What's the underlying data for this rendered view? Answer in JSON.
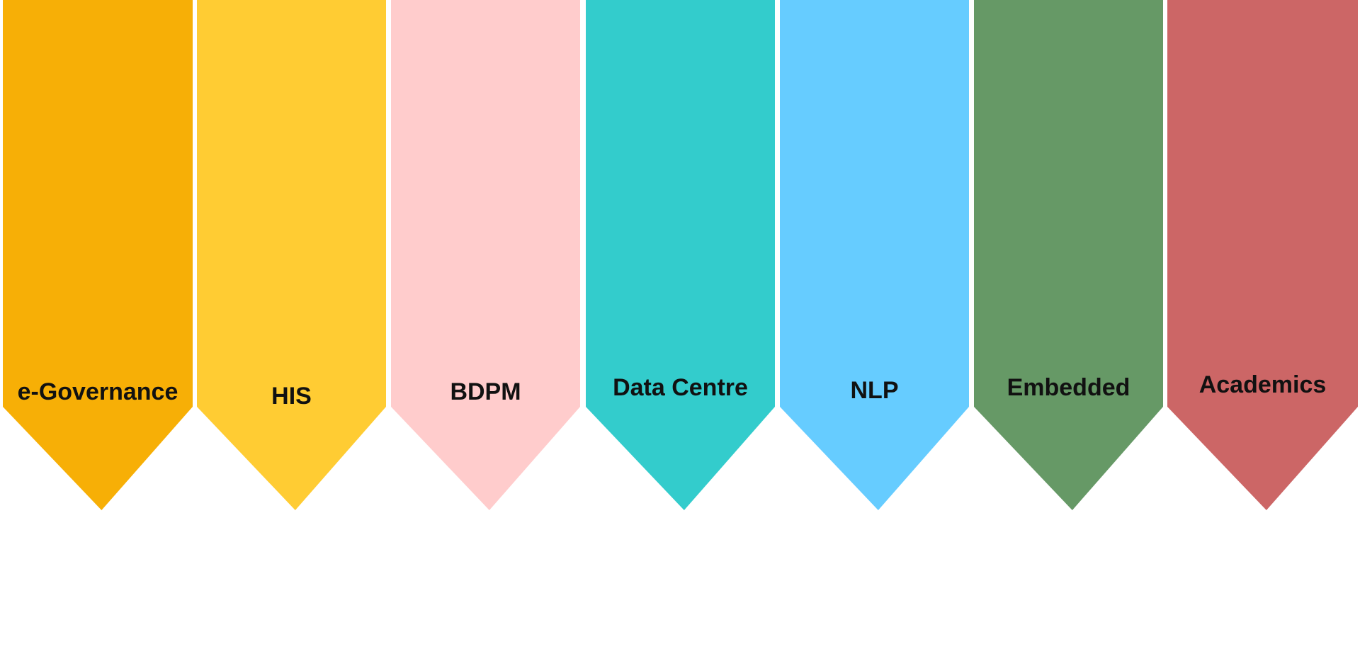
{
  "departments": [
    {
      "label": "e-Governance",
      "color": "#F7AF06"
    },
    {
      "label": "HIS",
      "color": "#FFCC33"
    },
    {
      "label": "BDPM",
      "color": "#FFCCCC"
    },
    {
      "label": "Data Centre",
      "color": "#33CCCC"
    },
    {
      "label": "NLP",
      "color": "#66CCFF"
    },
    {
      "label": "Embedded",
      "color": "#669966"
    },
    {
      "label": "Academics",
      "color": "#CC6666"
    }
  ]
}
